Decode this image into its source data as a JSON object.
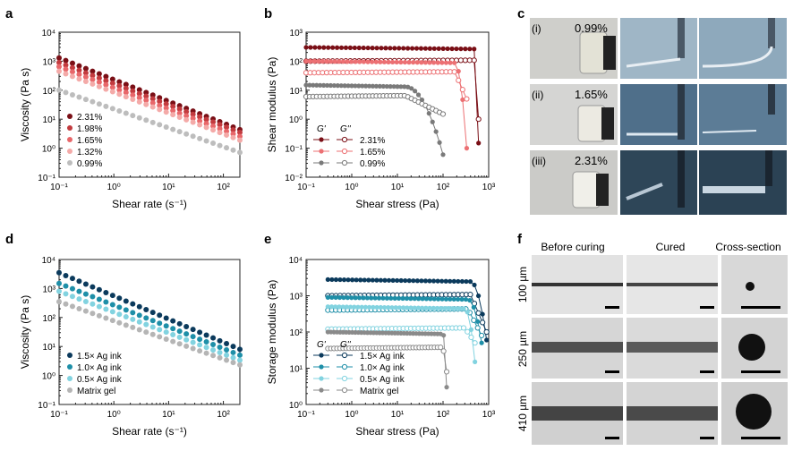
{
  "panel_labels": [
    "a",
    "b",
    "c",
    "d",
    "e",
    "f"
  ],
  "chart_data": [
    {
      "id": "a",
      "type": "scatter",
      "xscale": "log",
      "yscale": "log",
      "xlabel": "Shear rate (s⁻¹)",
      "ylabel": "Viscosity (Pa s)",
      "xlim": [
        0.1,
        200
      ],
      "ylim": [
        0.1,
        10000
      ],
      "xticks": [
        "10⁻¹",
        "10⁰",
        "10¹",
        "10²"
      ],
      "yticks": [
        "10⁻¹",
        "10⁰",
        "10¹",
        "10²",
        "10³",
        "10⁴"
      ],
      "legend_position": "lower-left",
      "series": [
        {
          "name": "2.31%",
          "color": "#7a0f16",
          "v0": 1300,
          "slope": -0.75
        },
        {
          "name": "1.98%",
          "color": "#c23b3f",
          "v0": 900,
          "slope": -0.73
        },
        {
          "name": "1.65%",
          "color": "#e8676a",
          "v0": 650,
          "slope": -0.73
        },
        {
          "name": "1.32%",
          "color": "#f4aaa8",
          "v0": 450,
          "slope": -0.72
        },
        {
          "name": "0.99%",
          "color": "#bdbdbd",
          "v0": 100,
          "slope": -0.65
        }
      ]
    },
    {
      "id": "b",
      "type": "line",
      "xscale": "log",
      "yscale": "log",
      "xlabel": "Shear stress (Pa)",
      "ylabel": "Shear modulus (Pa)",
      "xlim": [
        0.1,
        1000
      ],
      "ylim": [
        0.01,
        1000
      ],
      "xticks": [
        "10⁻¹",
        "10⁰",
        "10¹",
        "10²",
        "10³"
      ],
      "yticks": [
        "10⁻²",
        "10⁻¹",
        "10⁰",
        "10¹",
        "10²",
        "10³"
      ],
      "legend_headers": [
        "G'",
        "G''"
      ],
      "legend_position": "lower-left",
      "series": [
        {
          "name": "2.31%",
          "color": "#7a0f16",
          "Gp": 300,
          "Gpp": 100,
          "yield": 480,
          "end": 600,
          "endGp": 0.15,
          "endGpp": 1
        },
        {
          "name": "1.65%",
          "color": "#ec7073",
          "Gp": 100,
          "Gpp": 40,
          "yield": 180,
          "end": 330,
          "endGp": 0.1,
          "endGpp": 5
        },
        {
          "name": "0.99%",
          "color": "#7a7a7a",
          "Gp": 15,
          "Gpp": 6,
          "yield": 15,
          "end": 100,
          "endGp": 0.06,
          "endGpp": 1.5
        }
      ]
    },
    {
      "id": "d",
      "type": "scatter",
      "xscale": "log",
      "yscale": "log",
      "xlabel": "Shear rate (s⁻¹)",
      "ylabel": "Viscosity (Pa s)",
      "xlim": [
        0.1,
        200
      ],
      "ylim": [
        0.1,
        10000
      ],
      "xticks": [
        "10⁻¹",
        "10⁰",
        "10¹",
        "10²"
      ],
      "yticks": [
        "10⁻¹",
        "10⁰",
        "10¹",
        "10²",
        "10³",
        "10⁴"
      ],
      "legend_position": "lower-left",
      "series": [
        {
          "name": "1.5× Ag ink",
          "color": "#0b3a5c",
          "v0": 3500,
          "slope": -0.8
        },
        {
          "name": "1.0× Ag ink",
          "color": "#1e8fa8",
          "v0": 1500,
          "slope": -0.75
        },
        {
          "name": "0.5× Ag ink",
          "color": "#82d3e0",
          "v0": 800,
          "slope": -0.72
        },
        {
          "name": "Matrix gel",
          "color": "#b5b5b5",
          "v0": 350,
          "slope": -0.66
        }
      ]
    },
    {
      "id": "e",
      "type": "line",
      "xscale": "log",
      "yscale": "log",
      "xlabel": "Shear stress (Pa)",
      "ylabel": "Storage modulus (Pa)",
      "xlim": [
        0.1,
        1000
      ],
      "ylim": [
        1,
        10000
      ],
      "xticks": [
        "10⁻¹",
        "10⁰",
        "10¹",
        "10²",
        "10³"
      ],
      "yticks": [
        "10⁰",
        "10¹",
        "10²",
        "10³",
        "10⁴"
      ],
      "legend_headers": [
        "G'",
        "G''"
      ],
      "legend_position": "lower-left",
      "series": [
        {
          "name": "1.5× Ag ink",
          "color": "#0b3a5c",
          "Gp": 2800,
          "Gpp": 1000,
          "yield": 400,
          "end": 900,
          "endGp": 60,
          "endGpp": 100
        },
        {
          "name": "1.0× Ag ink",
          "color": "#1e8fa8",
          "Gp": 900,
          "Gpp": 400,
          "yield": 350,
          "end": 700,
          "endGp": 50,
          "endGpp": 80
        },
        {
          "name": "0.5× Ag ink",
          "color": "#82d3e0",
          "Gp": 500,
          "Gpp": 120,
          "yield": 300,
          "end": 500,
          "endGp": 15,
          "endGpp": 50
        },
        {
          "name": "Matrix gel",
          "color": "#8a8a8a",
          "Gp": 100,
          "Gpp": 35,
          "yield": 100,
          "end": 120,
          "endGp": 3,
          "endGpp": 8
        }
      ]
    }
  ],
  "panel_c": {
    "rows": [
      {
        "roman": "(i)",
        "pct": "0.99%"
      },
      {
        "roman": "(ii)",
        "pct": "1.65%"
      },
      {
        "roman": "(iii)",
        "pct": "2.31%"
      }
    ]
  },
  "panel_f": {
    "columns": [
      "Before curing",
      "Cured",
      "Cross-section"
    ],
    "rows": [
      "100 µm",
      "250 µm",
      "410 µm"
    ]
  }
}
